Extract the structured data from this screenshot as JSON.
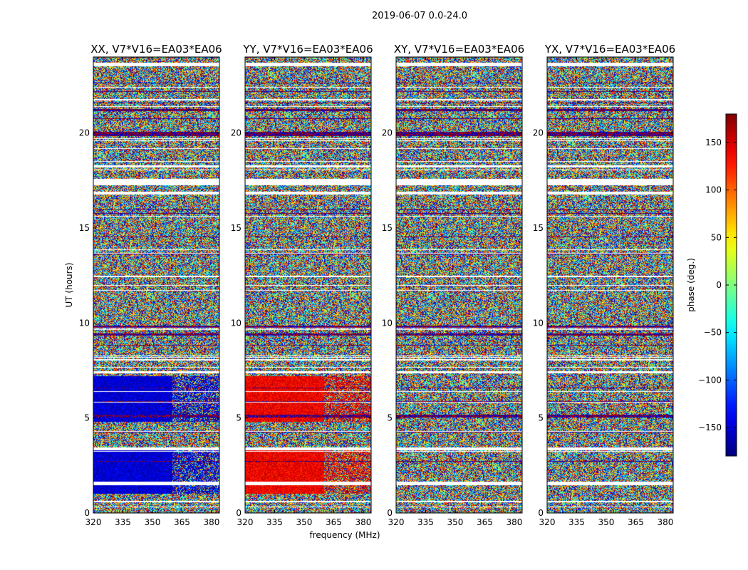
{
  "figure": {
    "suptitle": "2019-06-07 0.0-24.0"
  },
  "chart_data": {
    "type": "heatmap",
    "title": "2019-06-07 0.0-24.0",
    "xlabel": "frequency (MHz)",
    "ylabel": "UT (hours)",
    "xlim": [
      320,
      384
    ],
    "ylim": [
      0,
      24
    ],
    "xticks": [
      320,
      335,
      350,
      365,
      380
    ],
    "yticks": [
      0,
      5,
      10,
      15,
      20
    ],
    "colorbar": {
      "label": "phase (deg.)",
      "colormap": "jet",
      "range": [
        -180,
        180
      ],
      "ticks": [
        -150,
        -100,
        -50,
        0,
        50,
        100,
        150
      ],
      "tick_labels": [
        "−150",
        "−100",
        "−50",
        "0",
        "50",
        "100",
        "150"
      ]
    },
    "panels": [
      {
        "title": "XX, V7*V16=EA03*EA06",
        "polarization": "XX",
        "coherent_phase_deg": -150
      },
      {
        "title": "YY, V7*V16=EA03*EA06",
        "polarization": "YY",
        "coherent_phase_deg": 140
      },
      {
        "title": "XY, V7*V16=EA03*EA06",
        "polarization": "XY",
        "coherent_phase_deg": null
      },
      {
        "title": "YX, V7*V16=EA03*EA06",
        "polarization": "YX",
        "coherent_phase_deg": null
      }
    ],
    "coherent_intervals_hours": [
      [
        1.0,
        3.3
      ],
      [
        4.8,
        7.2
      ]
    ],
    "coherent_freq_limit_mhz": 360,
    "flagged_intervals_hours": [
      [
        1.45,
        1.65
      ],
      [
        17.3,
        17.6
      ],
      [
        23.5,
        23.7
      ],
      [
        0.55,
        0.65
      ],
      [
        3.35,
        3.45
      ],
      [
        7.35,
        7.45
      ],
      [
        12.4,
        12.5
      ],
      [
        16.8,
        16.9
      ],
      [
        18.2,
        18.3
      ],
      [
        21.7,
        21.8
      ]
    ],
    "dark_lines_hours": [
      19.9,
      20.0,
      21.2,
      9.8,
      9.4,
      5.1
    ]
  }
}
